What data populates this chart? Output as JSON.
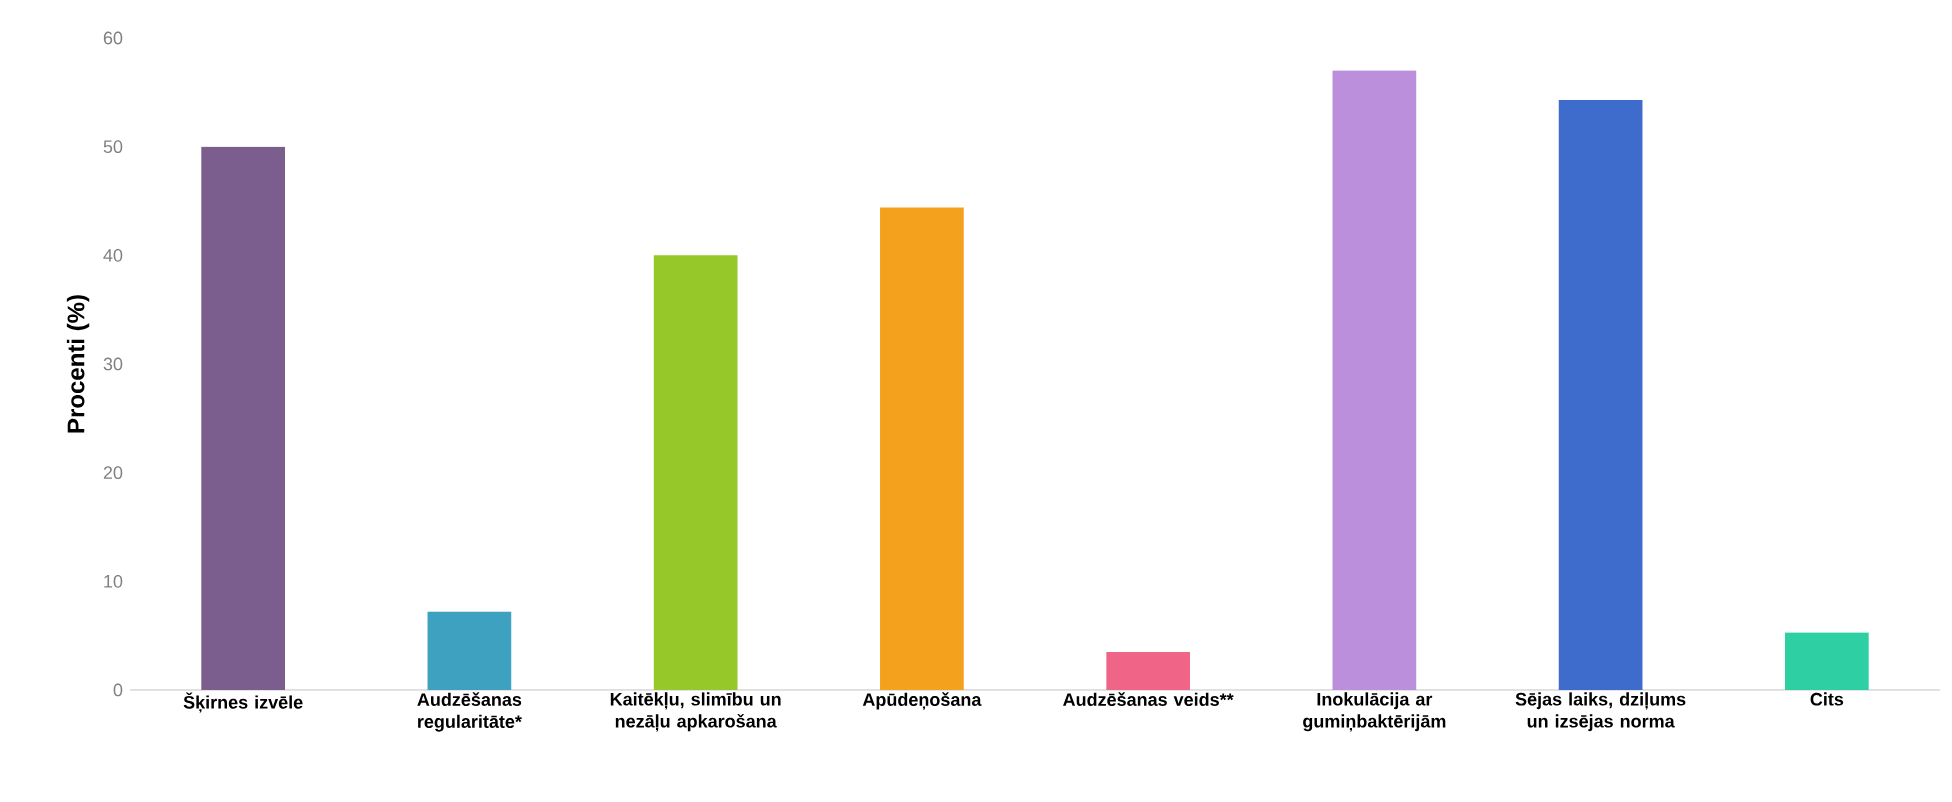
{
  "chart_data": {
    "type": "bar",
    "ylabel": "Procenti (%)",
    "categories": [
      "Šķirnes izvēle",
      "Audzēšanas regularitāte*",
      "Kaitēkļu, slimību un nezāļu apkarošana",
      "Apūdeņošana",
      "Audzēšanas veids**",
      "Inokulācija ar gumiņbaktērijām",
      "Sējas laiks, dziļums un izsējas norma",
      "Cits"
    ],
    "values": [
      50,
      7.2,
      40,
      44.4,
      3.5,
      57,
      54.3,
      5.3
    ],
    "colors": [
      "#7b5e8e",
      "#3fa1c0",
      "#95c828",
      "#f4a11e",
      "#f06488",
      "#bb8fdb",
      "#3d6ccc",
      "#2dcfa3"
    ],
    "ylim": [
      0,
      60
    ],
    "yticks": [
      0,
      10,
      20,
      30,
      40,
      50,
      60
    ]
  }
}
